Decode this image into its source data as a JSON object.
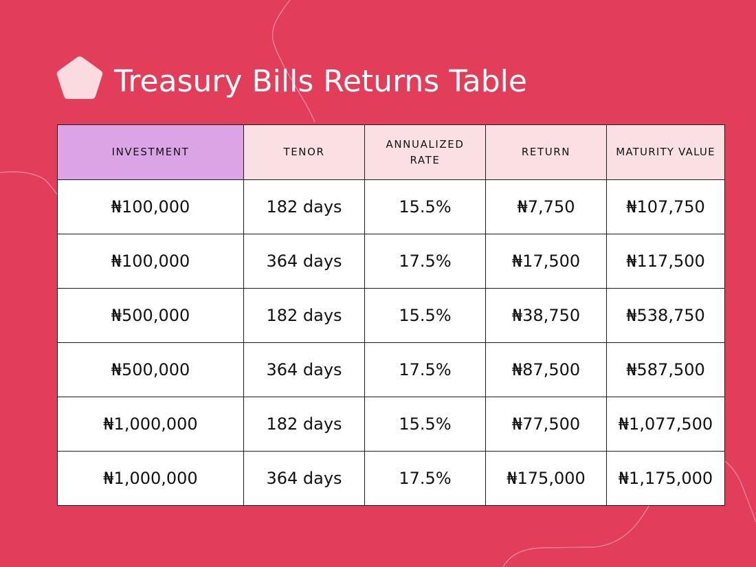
{
  "title": "Treasury Bills Returns Table",
  "colors": {
    "background": "#e23d59",
    "header_highlight": "#dba5e5",
    "header": "#fadfe3",
    "cell": "#ffffff",
    "logo": "#fbdbe0"
  },
  "icons": {
    "logo": "pentagon-logo-icon"
  },
  "chart_data": {
    "type": "table",
    "columns": [
      "INVESTMENT",
      "TENOR",
      "ANNUALIZED RATE",
      "RETURN",
      "MATURITY VALUE"
    ],
    "rows": [
      [
        "₦100,000",
        "182 days",
        "15.5%",
        "₦7,750",
        "₦107,750"
      ],
      [
        "₦100,000",
        "364 days",
        "17.5%",
        "₦17,500",
        "₦117,500"
      ],
      [
        "₦500,000",
        "182 days",
        "15.5%",
        "₦38,750",
        "₦538,750"
      ],
      [
        "₦500,000",
        "364 days",
        "17.5%",
        "₦87,500",
        "₦587,500"
      ],
      [
        "₦1,000,000",
        "182 days",
        "15.5%",
        "₦77,500",
        "₦1,077,500"
      ],
      [
        "₦1,000,000",
        "364 days",
        "17.5%",
        "₦175,000",
        "₦1,175,000"
      ]
    ]
  }
}
